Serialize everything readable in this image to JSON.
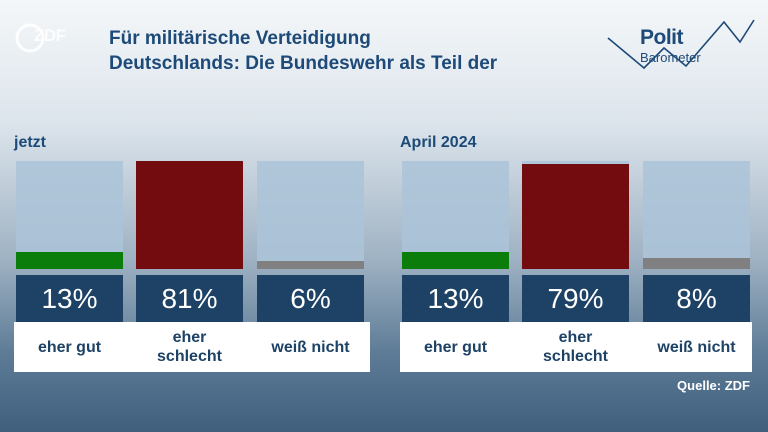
{
  "logo_text": "ZDF",
  "title_line1": "Für militärische Verteidigung",
  "title_line2": "Deutschlands: Die Bundeswehr als Teil der",
  "brand": {
    "polit": "Polit",
    "barometer": "Barometer"
  },
  "source": "Quelle: ZDF",
  "colors": {
    "eher_gut": "#0a7d0a",
    "eher_schlecht": "#720c0e",
    "weiss_nicht": "#808080",
    "pct_box": "#1d4266",
    "title": "#1d4a78"
  },
  "chart_data": [
    {
      "type": "bar",
      "title": "jetzt",
      "categories": [
        "eher gut",
        "eher schlecht",
        "weiß nicht"
      ],
      "values": [
        13,
        81,
        6
      ],
      "value_labels": [
        "13%",
        "81%",
        "6%"
      ],
      "ylim": [
        0,
        81
      ]
    },
    {
      "type": "bar",
      "title": "April 2024",
      "categories": [
        "eher gut",
        "eher schlecht",
        "weiß nicht"
      ],
      "values": [
        13,
        79,
        8
      ],
      "value_labels": [
        "13%",
        "79%",
        "8%"
      ],
      "ylim": [
        0,
        81
      ]
    }
  ]
}
